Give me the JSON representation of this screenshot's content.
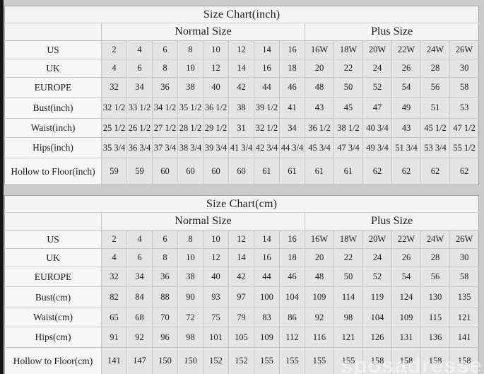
{
  "watermark": "sposadresses",
  "tables": [
    {
      "title": "Size Chart(inch)",
      "groups": {
        "normal": "Normal Size",
        "plus": "Plus Size"
      },
      "rows": [
        {
          "label": "US",
          "normal": [
            "2",
            "4",
            "6",
            "8",
            "10",
            "12",
            "14",
            "16"
          ],
          "plus": [
            "16W",
            "18W",
            "20W",
            "22W",
            "24W",
            "26W"
          ]
        },
        {
          "label": "UK",
          "normal": [
            "4",
            "6",
            "8",
            "10",
            "12",
            "14",
            "16",
            "18"
          ],
          "plus": [
            "20",
            "22",
            "24",
            "26",
            "28",
            "30"
          ]
        },
        {
          "label": "EUROPE",
          "normal": [
            "32",
            "34",
            "36",
            "38",
            "40",
            "42",
            "44",
            "46"
          ],
          "plus": [
            "48",
            "50",
            "52",
            "54",
            "56",
            "58"
          ]
        },
        {
          "label": "Bust(inch)",
          "normal": [
            "32 1/2",
            "33 1/2",
            "34 1/2",
            "35 1/2",
            "36 1/2",
            "38",
            "39 1/2",
            "41"
          ],
          "plus": [
            "43",
            "45",
            "47",
            "49",
            "51",
            "53"
          ]
        },
        {
          "label": "Waist(inch)",
          "normal": [
            "25 1/2",
            "26 1/2",
            "27 1/2",
            "28 1/2",
            "29 1/2",
            "31",
            "32 1/2",
            "34"
          ],
          "plus": [
            "36 1/2",
            "38 1/2",
            "40 3/4",
            "43",
            "45 1/2",
            "47 1/2"
          ]
        },
        {
          "label": "Hips(inch)",
          "normal": [
            "35 3/4",
            "36 3/4",
            "37 3/4",
            "38 3/4",
            "39 3/4",
            "41 3/4",
            "42 3/4",
            "44 3/4"
          ],
          "plus": [
            "45 3/4",
            "47 3/4",
            "49 3/4",
            "51 3/4",
            "53 3/4",
            "55 1/2"
          ]
        },
        {
          "label": "Hollow to Floor(inch)",
          "normal": [
            "59",
            "59",
            "60",
            "60",
            "60",
            "60",
            "61",
            "61"
          ],
          "plus": [
            "61",
            "61",
            "62",
            "62",
            "62",
            "62"
          ]
        }
      ]
    },
    {
      "title": "Size Chart(cm)",
      "groups": {
        "normal": "Normal Size",
        "plus": "Plus Size"
      },
      "rows": [
        {
          "label": "US",
          "normal": [
            "2",
            "4",
            "6",
            "8",
            "10",
            "12",
            "14",
            "16"
          ],
          "plus": [
            "16W",
            "18W",
            "20W",
            "22W",
            "24W",
            "26W"
          ]
        },
        {
          "label": "UK",
          "normal": [
            "4",
            "6",
            "8",
            "10",
            "12",
            "14",
            "16",
            "18"
          ],
          "plus": [
            "20",
            "22",
            "24",
            "26",
            "28",
            "30"
          ]
        },
        {
          "label": "EUROPE",
          "normal": [
            "32",
            "34",
            "36",
            "38",
            "40",
            "42",
            "44",
            "46"
          ],
          "plus": [
            "48",
            "50",
            "52",
            "54",
            "56",
            "58"
          ]
        },
        {
          "label": "Bust(cm)",
          "normal": [
            "82",
            "84",
            "88",
            "90",
            "93",
            "97",
            "100",
            "104"
          ],
          "plus": [
            "109",
            "114",
            "119",
            "124",
            "130",
            "135"
          ]
        },
        {
          "label": "Waist(cm)",
          "normal": [
            "65",
            "68",
            "70",
            "72",
            "75",
            "79",
            "83",
            "86"
          ],
          "plus": [
            "92",
            "98",
            "104",
            "109",
            "115",
            "121"
          ]
        },
        {
          "label": "Hips(cm)",
          "normal": [
            "91",
            "92",
            "96",
            "98",
            "101",
            "105",
            "109",
            "112"
          ],
          "plus": [
            "116",
            "121",
            "126",
            "131",
            "136",
            "141"
          ]
        },
        {
          "label": "Hollow to Floor(cm)",
          "normal": [
            "141",
            "147",
            "150",
            "150",
            "152",
            "152",
            "155",
            "155"
          ],
          "plus": [
            "155",
            "155",
            "158",
            "158",
            "158",
            "158"
          ]
        }
      ]
    }
  ]
}
